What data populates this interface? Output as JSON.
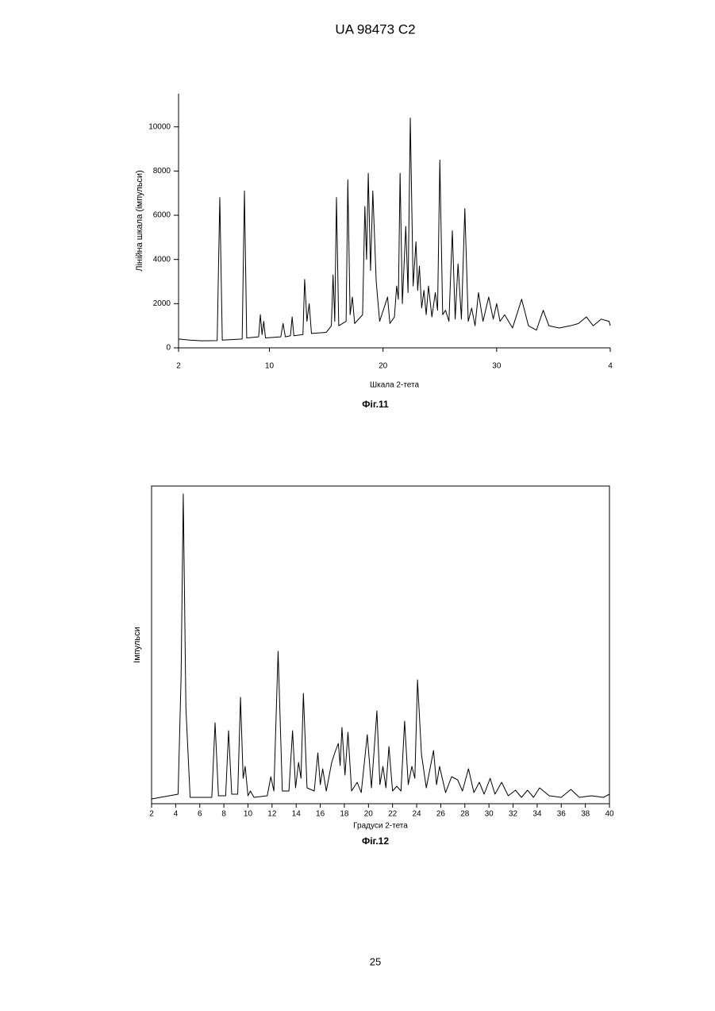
{
  "header": "UA   98473   C2",
  "page_number": "25",
  "chart_data": [
    {
      "type": "line",
      "caption": "Фіг.11",
      "x_label": "Шкала 2-тета",
      "y_label": "Лінійна  шкала (імпульси)",
      "color": "#000000",
      "frame": false,
      "xlim": [
        2,
        40
      ],
      "xticks": [
        2,
        10,
        20,
        30,
        {
          "value": 40,
          "label": "4"
        }
      ],
      "ylim": [
        0,
        11500
      ],
      "yticks": [
        0,
        2000,
        4000,
        6000,
        8000,
        10000
      ],
      "x": [
        2,
        3,
        4,
        5.4,
        5.63,
        5.85,
        7.6,
        7.8,
        8.0,
        9.05,
        9.2,
        9.35,
        9.5,
        9.65,
        11.0,
        11.2,
        11.4,
        11.85,
        12.0,
        12.15,
        12.95,
        13.1,
        13.3,
        13.5,
        13.7,
        15.0,
        15.45,
        15.6,
        15.75,
        15.9,
        16.1,
        16.75,
        16.9,
        17.1,
        17.3,
        17.5,
        18.2,
        18.4,
        18.55,
        18.7,
        18.9,
        19.1,
        19.4,
        19.7,
        20.4,
        20.6,
        21.0,
        21.2,
        21.35,
        21.5,
        21.7,
        22.0,
        22.2,
        22.4,
        22.65,
        22.9,
        23.05,
        23.2,
        23.4,
        23.6,
        23.8,
        24.0,
        24.3,
        24.6,
        24.8,
        25.0,
        25.25,
        25.5,
        25.8,
        26.1,
        26.35,
        26.6,
        26.9,
        27.2,
        27.5,
        27.8,
        28.1,
        28.4,
        28.8,
        29.3,
        29.7,
        30.0,
        30.3,
        30.7,
        31.4,
        32.2,
        32.8,
        33.5,
        34.1,
        34.6,
        35.5,
        36.5,
        37.2,
        37.9,
        38.5,
        39.2,
        39.9,
        40
      ],
      "values": [
        400,
        350,
        320,
        330,
        6800,
        350,
        400,
        7100,
        450,
        500,
        1500,
        600,
        1200,
        450,
        500,
        1100,
        500,
        550,
        1400,
        550,
        600,
        3100,
        1200,
        2000,
        650,
        700,
        1000,
        3300,
        1200,
        6800,
        1000,
        1200,
        7600,
        1500,
        2300,
        1100,
        1500,
        6400,
        4000,
        7900,
        3500,
        7100,
        3000,
        1200,
        2300,
        1100,
        1400,
        2800,
        2200,
        7900,
        2000,
        5500,
        2500,
        10400,
        2800,
        4800,
        2600,
        3700,
        1800,
        2600,
        1500,
        2800,
        1400,
        2500,
        1700,
        8500,
        1500,
        1700,
        1200,
        5300,
        1300,
        3800,
        1300,
        6300,
        1200,
        1800,
        1000,
        2500,
        1200,
        2300,
        1300,
        2000,
        1200,
        1500,
        900,
        2200,
        1000,
        800,
        1700,
        1000,
        900,
        1000,
        1100,
        1400,
        1000,
        1300,
        1200,
        1000
      ]
    },
    {
      "type": "line",
      "caption": "Фіг.12",
      "x_label": "Градуси 2-тета",
      "y_label": "Імпульси",
      "color": "#000000",
      "frame": true,
      "xlim": [
        2,
        40
      ],
      "xticks": [
        2,
        4,
        6,
        8,
        10,
        12,
        14,
        16,
        18,
        20,
        22,
        24,
        26,
        28,
        30,
        32,
        34,
        36,
        38,
        40
      ],
      "ylim": [
        0,
        100
      ],
      "x": [
        2,
        4.2,
        4.45,
        4.63,
        4.85,
        5.2,
        7.0,
        7.27,
        7.55,
        8.15,
        8.39,
        8.65,
        9.15,
        9.38,
        9.6,
        9.77,
        10.0,
        10.2,
        10.5,
        11.6,
        11.9,
        12.15,
        12.5,
        12.85,
        13.4,
        13.7,
        13.95,
        14.2,
        14.4,
        14.6,
        14.9,
        15.5,
        15.8,
        16.0,
        16.2,
        16.5,
        16.95,
        17.2,
        17.5,
        17.65,
        17.8,
        18.05,
        18.3,
        18.6,
        19.06,
        19.4,
        19.9,
        20.25,
        20.7,
        20.95,
        21.2,
        21.45,
        21.7,
        22.0,
        22.35,
        22.7,
        23.0,
        23.3,
        23.6,
        23.85,
        24.07,
        24.4,
        24.8,
        25.4,
        25.65,
        25.9,
        26.4,
        26.9,
        27.4,
        27.8,
        28.3,
        28.75,
        29.2,
        29.6,
        30.1,
        30.5,
        31.05,
        31.6,
        32.2,
        32.7,
        33.2,
        33.7,
        34.2,
        35.0,
        36.0,
        36.8,
        37.5,
        38.5,
        39.5,
        40
      ],
      "values": [
        1.5,
        3,
        40,
        97.5,
        30,
        2,
        2,
        25.5,
        2.5,
        2.5,
        23,
        3,
        3,
        33.5,
        8,
        11.75,
        2.5,
        4,
        2,
        2.5,
        8.5,
        4,
        48,
        4,
        4,
        23,
        5,
        13,
        8,
        34.75,
        5,
        4,
        16,
        6,
        11,
        4,
        13,
        16,
        19,
        12,
        24,
        9,
        22.5,
        4,
        6.75,
        3.5,
        21.75,
        5,
        29.25,
        6,
        11.75,
        5,
        18,
        4,
        5.5,
        4,
        26,
        6,
        11.75,
        8,
        39,
        15.5,
        5,
        16.75,
        6,
        11.75,
        3.5,
        8.5,
        7.5,
        4,
        11,
        3.5,
        6.75,
        3,
        8,
        3,
        6.75,
        2.5,
        4.25,
        2,
        4.25,
        2,
        5,
        2.5,
        2,
        4.5,
        2,
        2.5,
        2,
        3
      ]
    }
  ]
}
